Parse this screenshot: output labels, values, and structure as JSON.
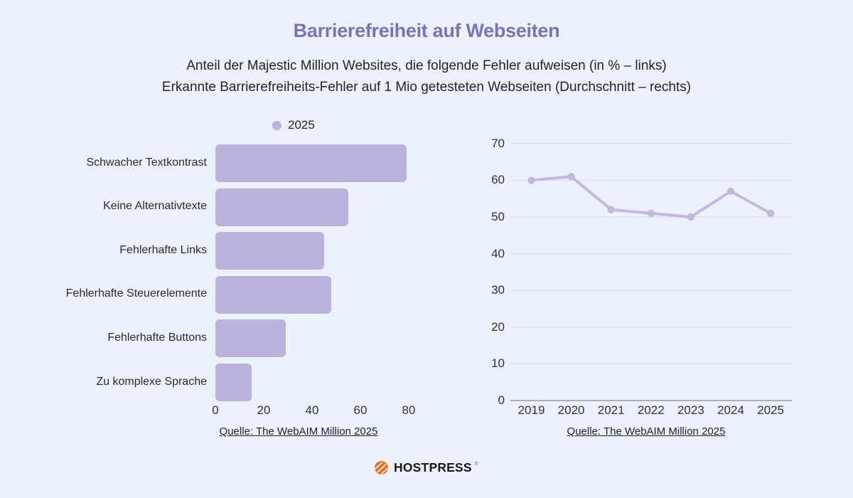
{
  "page": {
    "title": "Barrierefreiheit auf Webseiten",
    "subtitle_line1": "Anteil der Majestic Million Websites, die folgende Fehler aufweisen (in % – links)",
    "subtitle_line2": "Erkannte Barrierefreiheits-Fehler auf 1 Mio getesteten Webseiten (Durchschnitt – rechts)"
  },
  "colors": {
    "background": "#ebf2fb",
    "accent_purple": "#bcb2de",
    "line_purple": "#c2b8e2",
    "title_purple": "#7276b9",
    "text_dark": "#23232b",
    "grid": "#d9dfe8",
    "axis": "#aab1bc",
    "logo_orange": "#ee6e20",
    "logo_text": "#17181c"
  },
  "legend": {
    "label": "2025",
    "swatch_icon": "purple-dot"
  },
  "chart_data": [
    {
      "type": "bar",
      "orientation": "horizontal",
      "legend": [
        "2025"
      ],
      "categories": [
        "Schwacher Textkontrast",
        "Keine Alternativtexte",
        "Fehlerhafte Links",
        "Fehlerhafte Steuerelemente",
        "Fehlerhafte Buttons",
        "Zu komplexe Sprache"
      ],
      "values": [
        79,
        55,
        45,
        48,
        29,
        15
      ],
      "unit": "%",
      "xlim": [
        0,
        80
      ],
      "x_ticks": [
        0,
        20,
        40,
        60,
        80
      ],
      "grid": false,
      "source": "Quelle: The WebAIM Million 2025"
    },
    {
      "type": "line",
      "categories": [
        "2019",
        "2020",
        "2021",
        "2022",
        "2023",
        "2024",
        "2025"
      ],
      "values": [
        60,
        61,
        52,
        51,
        50,
        57,
        51
      ],
      "ylim": [
        0,
        70
      ],
      "y_ticks": [
        0,
        10,
        20,
        30,
        40,
        50,
        60,
        70
      ],
      "grid": true,
      "legend_position": "none",
      "source": "Quelle: The WebAIM Million 2025"
    }
  ],
  "footer": {
    "brand": "HOSTPRESS",
    "mark": "®",
    "icon": "orange-striped-circle"
  }
}
